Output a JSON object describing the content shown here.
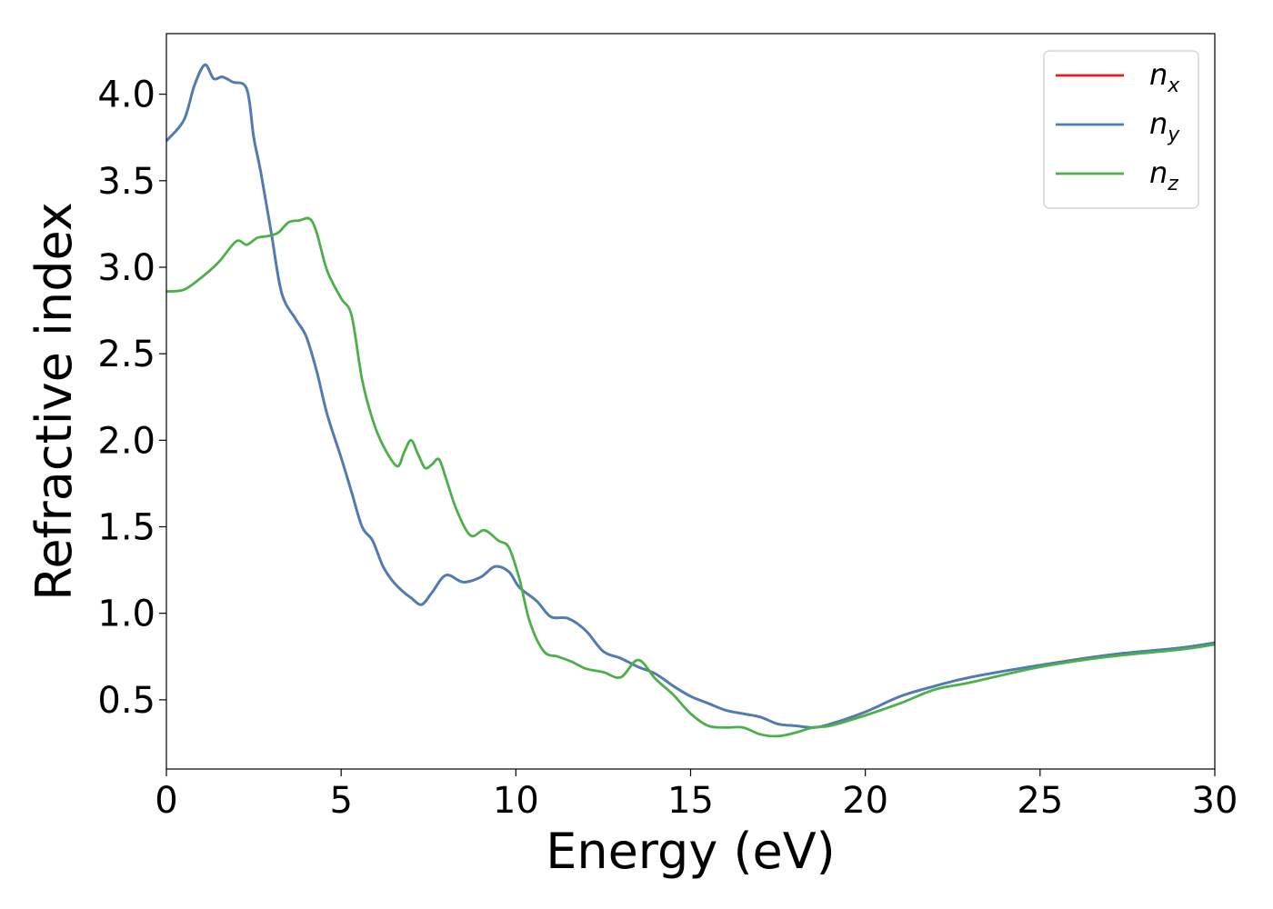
{
  "chart_data": {
    "type": "line",
    "title": "",
    "xlabel": "Energy (eV)",
    "ylabel": "Refractive index",
    "xlim": [
      0,
      30
    ],
    "ylim": [
      0.1,
      4.35
    ],
    "xticks": [
      0,
      5,
      10,
      15,
      20,
      25,
      30
    ],
    "xtick_labels": [
      "0",
      "5",
      "10",
      "15",
      "20",
      "25",
      "30"
    ],
    "yticks": [
      0.5,
      1.0,
      1.5,
      2.0,
      2.5,
      3.0,
      3.5,
      4.0
    ],
    "ytick_labels": [
      "0.5",
      "1.0",
      "1.5",
      "2.0",
      "2.5",
      "3.0",
      "3.5",
      "4.0"
    ],
    "grid": false,
    "legend_position": "top-right",
    "colors": {
      "nx": "#e41a1c",
      "ny": "#4a7fb5",
      "nz": "#4daf4a"
    },
    "series": [
      {
        "name": "n_x",
        "label_base": "n",
        "label_sub": "x",
        "color": "#e41a1c",
        "x": [
          0,
          0.5,
          0.8,
          1.1,
          1.35,
          1.6,
          1.9,
          2.3,
          2.5,
          2.7,
          3.0,
          3.3,
          3.7,
          4.0,
          4.3,
          4.6,
          5.0,
          5.3,
          5.6,
          5.9,
          6.2,
          6.5,
          6.8,
          7.0,
          7.3,
          7.6,
          8.0,
          8.5,
          9.0,
          9.4,
          9.8,
          10.1,
          10.6,
          11.0,
          11.5,
          12.0,
          12.5,
          13.0,
          13.5,
          14.0,
          14.5,
          15.0,
          15.5,
          16.0,
          16.5,
          17.0,
          17.5,
          18.0,
          18.5,
          19.0,
          20.0,
          21.0,
          22.0,
          23.0,
          25.0,
          27.0,
          29.0,
          30.0
        ],
        "y": [
          3.73,
          3.85,
          4.05,
          4.17,
          4.09,
          4.1,
          4.07,
          4.03,
          3.75,
          3.55,
          3.2,
          2.85,
          2.7,
          2.6,
          2.4,
          2.15,
          1.9,
          1.7,
          1.5,
          1.42,
          1.27,
          1.18,
          1.12,
          1.09,
          1.05,
          1.12,
          1.22,
          1.18,
          1.21,
          1.27,
          1.24,
          1.15,
          1.07,
          0.98,
          0.97,
          0.9,
          0.78,
          0.74,
          0.69,
          0.65,
          0.58,
          0.52,
          0.48,
          0.44,
          0.42,
          0.4,
          0.36,
          0.35,
          0.34,
          0.36,
          0.43,
          0.52,
          0.58,
          0.63,
          0.7,
          0.76,
          0.8,
          0.83
        ]
      },
      {
        "name": "n_y",
        "label_base": "n",
        "label_sub": "y",
        "color": "#4a7fb5",
        "x": [
          0,
          0.5,
          0.8,
          1.1,
          1.35,
          1.6,
          1.9,
          2.3,
          2.5,
          2.7,
          3.0,
          3.3,
          3.7,
          4.0,
          4.3,
          4.6,
          5.0,
          5.3,
          5.6,
          5.9,
          6.2,
          6.5,
          6.8,
          7.0,
          7.3,
          7.6,
          8.0,
          8.5,
          9.0,
          9.4,
          9.8,
          10.1,
          10.6,
          11.0,
          11.5,
          12.0,
          12.5,
          13.0,
          13.5,
          14.0,
          14.5,
          15.0,
          15.5,
          16.0,
          16.5,
          17.0,
          17.5,
          18.0,
          18.5,
          19.0,
          20.0,
          21.0,
          22.0,
          23.0,
          25.0,
          27.0,
          29.0,
          30.0
        ],
        "y": [
          3.73,
          3.85,
          4.05,
          4.17,
          4.09,
          4.1,
          4.07,
          4.03,
          3.75,
          3.55,
          3.2,
          2.85,
          2.7,
          2.6,
          2.4,
          2.15,
          1.9,
          1.7,
          1.5,
          1.42,
          1.27,
          1.18,
          1.12,
          1.09,
          1.05,
          1.12,
          1.22,
          1.18,
          1.21,
          1.27,
          1.24,
          1.15,
          1.07,
          0.98,
          0.97,
          0.9,
          0.78,
          0.74,
          0.69,
          0.65,
          0.58,
          0.52,
          0.48,
          0.44,
          0.42,
          0.4,
          0.36,
          0.35,
          0.34,
          0.36,
          0.43,
          0.52,
          0.58,
          0.63,
          0.7,
          0.76,
          0.8,
          0.83
        ]
      },
      {
        "name": "n_z",
        "label_base": "n",
        "label_sub": "z",
        "color": "#4daf4a",
        "x": [
          0,
          0.5,
          1.0,
          1.5,
          2.0,
          2.3,
          2.6,
          2.9,
          3.2,
          3.5,
          3.8,
          4.1,
          4.3,
          4.6,
          5.0,
          5.3,
          5.6,
          5.9,
          6.2,
          6.6,
          6.8,
          7.0,
          7.2,
          7.4,
          7.6,
          7.8,
          8.0,
          8.3,
          8.7,
          9.1,
          9.5,
          9.8,
          10.1,
          10.4,
          10.8,
          11.2,
          11.6,
          12.0,
          12.5,
          13.0,
          13.5,
          14.0,
          14.5,
          15.0,
          15.5,
          16.0,
          16.5,
          17.0,
          17.5,
          18.0,
          18.5,
          19.0,
          20.0,
          21.0,
          22.0,
          23.0,
          25.0,
          27.0,
          29.0,
          30.0
        ],
        "y": [
          2.86,
          2.87,
          2.94,
          3.03,
          3.15,
          3.13,
          3.17,
          3.18,
          3.2,
          3.26,
          3.27,
          3.28,
          3.2,
          2.98,
          2.82,
          2.72,
          2.35,
          2.12,
          1.97,
          1.85,
          1.93,
          2.0,
          1.92,
          1.84,
          1.86,
          1.89,
          1.78,
          1.6,
          1.45,
          1.48,
          1.42,
          1.38,
          1.2,
          0.95,
          0.78,
          0.75,
          0.72,
          0.68,
          0.66,
          0.63,
          0.73,
          0.62,
          0.53,
          0.42,
          0.35,
          0.34,
          0.34,
          0.3,
          0.29,
          0.31,
          0.34,
          0.35,
          0.41,
          0.48,
          0.56,
          0.6,
          0.69,
          0.75,
          0.79,
          0.82
        ]
      }
    ]
  }
}
